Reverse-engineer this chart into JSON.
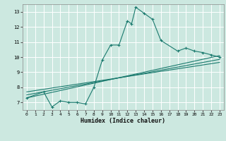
{
  "xlabel": "Humidex (Indice chaleur)",
  "bg_color": "#cce8e0",
  "line_color": "#1a7a6e",
  "grid_color": "#ffffff",
  "xlim": [
    -0.5,
    23.5
  ],
  "ylim": [
    6.5,
    13.5
  ],
  "yticks": [
    7,
    8,
    9,
    10,
    11,
    12,
    13
  ],
  "xticks": [
    0,
    1,
    2,
    3,
    4,
    5,
    6,
    7,
    8,
    9,
    10,
    11,
    12,
    13,
    14,
    15,
    16,
    17,
    18,
    19,
    20,
    21,
    22,
    23
  ],
  "series": [
    [
      0,
      7.3
    ],
    [
      2,
      7.7
    ],
    [
      3,
      6.7
    ],
    [
      4,
      7.1
    ],
    [
      5,
      7.0
    ],
    [
      6,
      7.0
    ],
    [
      7,
      6.9
    ],
    [
      8,
      8.0
    ],
    [
      9,
      9.8
    ],
    [
      10,
      10.8
    ],
    [
      11,
      10.8
    ],
    [
      12,
      12.4
    ],
    [
      12.5,
      12.2
    ],
    [
      13,
      13.3
    ],
    [
      14,
      12.9
    ],
    [
      15,
      12.5
    ],
    [
      16,
      11.1
    ],
    [
      18,
      10.4
    ],
    [
      19,
      10.6
    ],
    [
      20,
      10.4
    ],
    [
      21,
      10.3
    ],
    [
      22,
      10.15
    ],
    [
      23,
      10.0
    ]
  ],
  "trend_lines": [
    [
      [
        0,
        7.3
      ],
      [
        23,
        10.1
      ]
    ],
    [
      [
        0,
        7.5
      ],
      [
        23,
        9.85
      ]
    ],
    [
      [
        0,
        7.7
      ],
      [
        23,
        9.65
      ]
    ]
  ]
}
